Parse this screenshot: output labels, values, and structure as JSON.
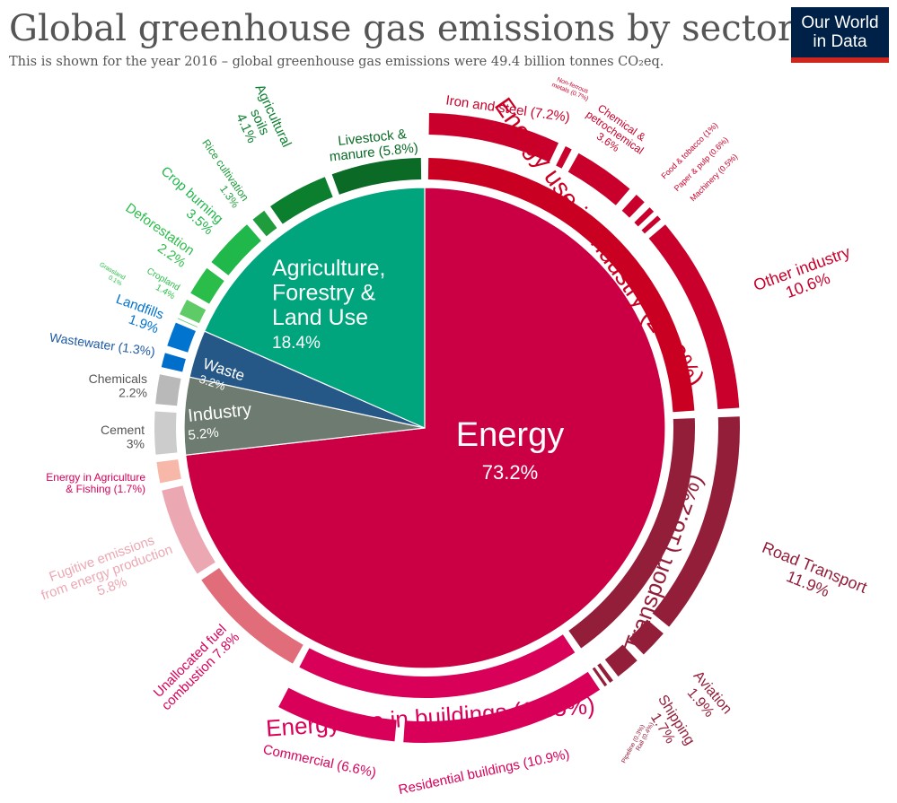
{
  "header": {
    "title": "Global greenhouse gas emissions by sector",
    "subtitle": "This is shown for the year 2016 – global greenhouse gas emissions were 49.4 billion tonnes CO₂eq."
  },
  "logo": {
    "line1": "Our World",
    "line2": "in Data"
  },
  "chart_data": {
    "type": "pie",
    "title": "Global greenhouse gas emissions by sector",
    "inner": [
      {
        "name": "Energy",
        "pct": "73.2%",
        "value": 73.2,
        "color": "#cb0044"
      },
      {
        "name": "Industry",
        "pct": "5.2%",
        "value": 5.2,
        "color": "#6d7b70"
      },
      {
        "name": "Waste",
        "pct": "3.2%",
        "value": 3.2,
        "color": "#255787"
      },
      {
        "name": "Agriculture, Forestry & Land Use",
        "pct": "18.4%",
        "value": 18.4,
        "color": "#00a57d"
      }
    ],
    "middle": [
      {
        "name": "Energy use in Industry",
        "value": 24.2,
        "label": "Energy use in Industry (24.2%)",
        "color": "#ca0023"
      },
      {
        "name": "Transport",
        "value": 16.2,
        "label": "Transport (16.2%)",
        "color": "#931e3a"
      },
      {
        "name": "Energy use in buildings",
        "value": 17.5,
        "label": "Energy use in buildings (17.5%)",
        "color": "#d9005a"
      },
      {
        "name": "Unallocated fuel combustion",
        "value": 7.8,
        "label": "Unallocated fuel combustion 7.8%",
        "color": "#e06d79"
      },
      {
        "name": "Fugitive emissions from energy production",
        "value": 5.8,
        "label": "Fugitive emissions from energy production 5.8%",
        "color": "#eba8b3"
      },
      {
        "name": "Energy in Agriculture & Fishing",
        "value": 1.7,
        "label": "Energy in Agriculture & Fishing (1.7%)",
        "color": "#f7b7a9"
      },
      {
        "name": "Cement",
        "value": 3.0,
        "label": "Cement 3%",
        "color": "#cccccc"
      },
      {
        "name": "Chemicals",
        "value": 2.2,
        "label": "Chemicals 2.2%",
        "color": "#b9b9b9"
      },
      {
        "name": "Wastewater",
        "value": 1.3,
        "label": "Wastewater (1.3%)",
        "color": "#006ecb"
      },
      {
        "name": "Landfills",
        "value": 1.9,
        "label": "Landfills 1.9%",
        "color": "#0074cf"
      },
      {
        "name": "Grassland",
        "value": 0.1,
        "label": "Grassland 0.1%",
        "color": "#56cd6c"
      },
      {
        "name": "Cropland",
        "value": 1.4,
        "label": "Cropland 1.4%",
        "color": "#5fcb67"
      },
      {
        "name": "Deforestation",
        "value": 2.2,
        "label": "Deforestation 2.2%",
        "color": "#2bbd49"
      },
      {
        "name": "Crop burning",
        "value": 3.5,
        "label": "Crop burning 3.5%",
        "color": "#20b74b"
      },
      {
        "name": "Rice cultivation",
        "value": 1.3,
        "label": "Rice cultivation 1.3%",
        "color": "#1f9c3c"
      },
      {
        "name": "Agricultural soils",
        "value": 4.1,
        "label": "Agricultural soils 4.1%",
        "color": "#0b7f2e"
      },
      {
        "name": "Livestock & manure",
        "value": 5.8,
        "label": "Livestock & manure (5.8%)",
        "color": "#0a6a26"
      }
    ],
    "outer": [
      {
        "name": "Iron and steel",
        "value": 7.2,
        "label": "Iron and steel (7.2%)",
        "color": "#c9002b"
      },
      {
        "name": "Non-ferrous metals",
        "value": 0.7,
        "label": "Non-ferrous metals (0.7%)",
        "color": "#c9002b"
      },
      {
        "name": "Chemical & petrochemical",
        "value": 3.6,
        "label": "Chemical & petrochemical 3.6%",
        "color": "#c9002b"
      },
      {
        "name": "Food & tobacco",
        "value": 1.0,
        "label": "Food & tobacco (1%)",
        "color": "#c9002b"
      },
      {
        "name": "Paper & pulp",
        "value": 0.6,
        "label": "Paper & pulp (0.6%)",
        "color": "#c9002b"
      },
      {
        "name": "Machinery",
        "value": 0.5,
        "label": "Machinery (0.5%)",
        "color": "#c9002b"
      },
      {
        "name": "Other industry",
        "value": 10.6,
        "label": "Other industry 10.6%",
        "color": "#c9002b"
      },
      {
        "name": "Road Transport",
        "value": 11.9,
        "label": "Road Transport 11.9%",
        "color": "#931e3a"
      },
      {
        "name": "Aviation",
        "value": 1.9,
        "label": "Aviation 1.9%",
        "color": "#931e3a"
      },
      {
        "name": "Shipping",
        "value": 1.7,
        "label": "Shipping 1.7%",
        "color": "#931e3a"
      },
      {
        "name": "Rail",
        "value": 0.4,
        "label": "Rail (0.4%)",
        "color": "#931e3a"
      },
      {
        "name": "Pipeline",
        "value": 0.3,
        "label": "Pipeline (0.3%)",
        "color": "#931e3a"
      },
      {
        "name": "Residential buildings",
        "value": 10.9,
        "label": "Residential buildings (10.9%)",
        "color": "#d9005a"
      },
      {
        "name": "Commercial",
        "value": 6.6,
        "label": "Commercial (6.6%)",
        "color": "#d9005a"
      }
    ]
  }
}
